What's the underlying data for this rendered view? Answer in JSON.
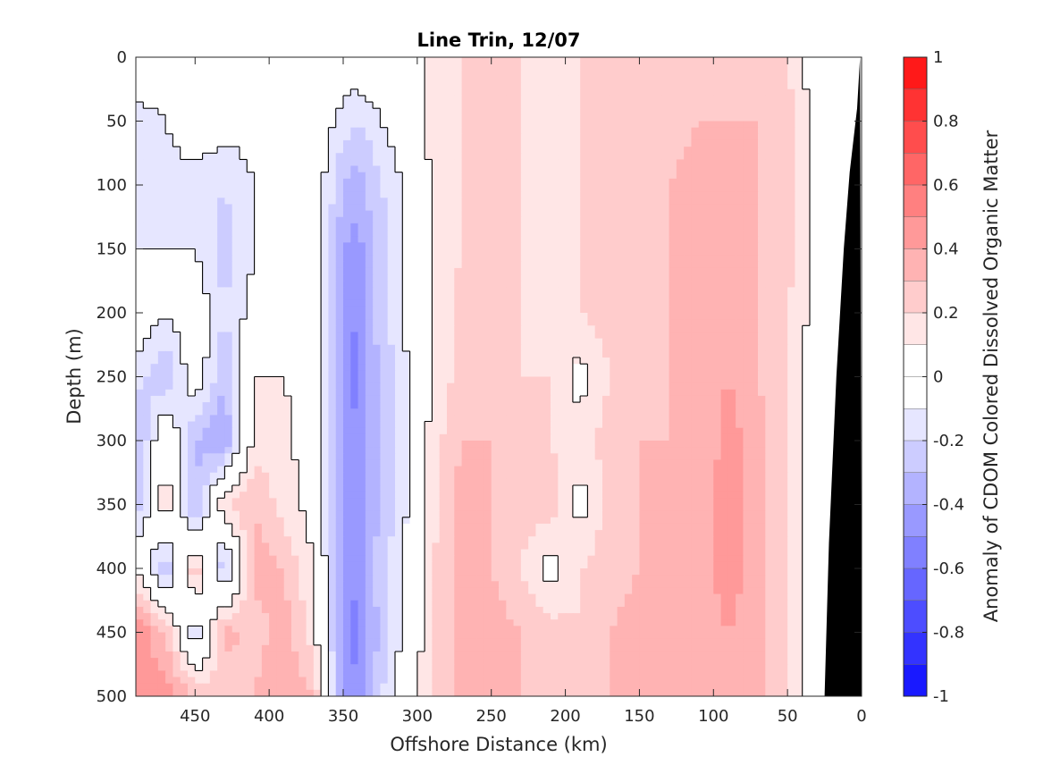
{
  "chart_data": {
    "type": "heatmap",
    "subtype": "filled contour section",
    "title": "Line Trin, 12/07",
    "xlabel": "Offshore Distance (km)",
    "ylabel": "Depth (m)",
    "colorbar_label": "Anomaly of CDOM Colored Dissolved Organic Matter",
    "xlim": [
      490,
      0
    ],
    "x_reversed": true,
    "ylim": [
      500,
      0
    ],
    "y_reversed": true,
    "x_ticks": [
      450,
      400,
      350,
      300,
      250,
      200,
      150,
      100,
      50,
      0
    ],
    "y_ticks": [
      0,
      50,
      100,
      150,
      200,
      250,
      300,
      350,
      400,
      450,
      500
    ],
    "colorbar_range": [
      -1,
      1
    ],
    "colorbar_ticks": [
      1,
      0.8,
      0.6,
      0.4,
      0.2,
      0,
      -0.2,
      -0.4,
      -0.6,
      -0.8,
      -1
    ],
    "contour_levels": 20,
    "zero_contour": "black line",
    "bottom_topography_color": "#000000",
    "colormap": "blue-white-red",
    "colors": {
      "negative": "#0000ff",
      "neutral": "#ffffff",
      "positive": "#ff0000"
    },
    "depths": [
      0,
      50,
      100,
      150,
      200,
      250,
      300,
      350,
      400,
      450,
      500
    ],
    "distances": [
      490,
      470,
      450,
      430,
      410,
      390,
      370,
      350,
      340,
      330,
      310,
      290,
      270,
      250,
      230,
      210,
      190,
      170,
      150,
      130,
      110,
      90,
      70,
      50,
      30,
      10
    ],
    "anomaly": [
      [
        0.0,
        0.0,
        0.0,
        0.0,
        0.0,
        0.0,
        0.05,
        0.0,
        0.0,
        0.05,
        0.0,
        0.15,
        0.2,
        0.2,
        0.2,
        0.1,
        0.2,
        0.2,
        0.2,
        0.2,
        0.2,
        0.2,
        0.2,
        0.2,
        0.0,
        0.0
      ],
      [
        -0.15,
        -0.1,
        0.0,
        -0.05,
        -0.05,
        0.0,
        0.0,
        -0.15,
        -0.2,
        -0.15,
        0.0,
        0.15,
        0.2,
        0.2,
        0.2,
        0.1,
        0.2,
        0.2,
        0.2,
        0.25,
        0.3,
        0.3,
        0.3,
        0.25,
        0.05,
        0.0
      ],
      [
        -0.15,
        -0.15,
        -0.15,
        -0.2,
        -0.1,
        0.0,
        0.0,
        -0.3,
        -0.35,
        -0.25,
        -0.1,
        0.1,
        0.2,
        0.25,
        0.2,
        0.1,
        0.2,
        0.25,
        0.25,
        0.3,
        0.35,
        0.35,
        0.3,
        0.25,
        0.05,
        0.0
      ],
      [
        -0.1,
        -0.1,
        -0.1,
        -0.25,
        -0.1,
        0.0,
        0.05,
        -0.4,
        -0.45,
        -0.3,
        -0.1,
        0.1,
        0.2,
        0.25,
        0.2,
        0.15,
        0.2,
        0.25,
        0.25,
        0.3,
        0.35,
        0.4,
        0.3,
        0.25,
        0.05,
        0.0
      ],
      [
        0.0,
        -0.1,
        0.0,
        -0.2,
        -0.05,
        0.1,
        0.1,
        -0.45,
        -0.5,
        -0.3,
        -0.1,
        0.1,
        0.25,
        0.25,
        0.2,
        0.15,
        0.2,
        0.25,
        0.25,
        0.3,
        0.35,
        0.4,
        0.3,
        0.2,
        0.05,
        0.0
      ],
      [
        -0.15,
        -0.3,
        0.0,
        -0.3,
        0.1,
        0.1,
        0.0,
        -0.45,
        -0.55,
        -0.35,
        -0.15,
        0.1,
        0.25,
        0.25,
        0.2,
        0.2,
        0.05,
        0.2,
        0.25,
        0.3,
        0.35,
        0.4,
        0.3,
        0.2,
        0.0,
        0.0
      ],
      [
        -0.35,
        0.05,
        -0.3,
        -0.4,
        0.15,
        0.15,
        0.0,
        -0.4,
        -0.5,
        -0.35,
        -0.15,
        0.15,
        0.3,
        0.3,
        0.25,
        0.2,
        0.15,
        0.25,
        0.3,
        0.3,
        0.3,
        0.45,
        0.35,
        0.2,
        0.0,
        0.0
      ],
      [
        -0.3,
        0.2,
        -0.35,
        0.2,
        0.3,
        0.15,
        0.05,
        -0.45,
        -0.5,
        -0.35,
        -0.15,
        0.15,
        0.35,
        0.3,
        0.25,
        0.25,
        0.05,
        0.25,
        0.3,
        0.3,
        0.35,
        0.45,
        0.35,
        0.2,
        0.0,
        0.0
      ],
      [
        0.1,
        -0.3,
        0.3,
        -0.3,
        0.35,
        0.3,
        0.1,
        -0.4,
        -0.5,
        -0.3,
        -0.1,
        0.2,
        0.35,
        0.3,
        0.2,
        0.05,
        0.2,
        0.25,
        0.3,
        0.3,
        0.35,
        0.45,
        0.35,
        0.2,
        0.0,
        0.0
      ],
      [
        0.5,
        0.3,
        -0.2,
        0.35,
        0.25,
        0.35,
        0.15,
        -0.45,
        -0.55,
        -0.35,
        -0.1,
        0.2,
        0.35,
        0.35,
        0.3,
        0.25,
        0.2,
        0.3,
        0.35,
        0.35,
        0.35,
        0.4,
        0.35,
        0.2,
        0.0,
        0.0
      ],
      [
        0.4,
        0.45,
        0.3,
        0.2,
        0.3,
        0.4,
        0.3,
        -0.4,
        -0.5,
        -0.3,
        0.0,
        0.2,
        0.35,
        0.35,
        0.3,
        0.25,
        0.25,
        0.3,
        0.35,
        0.35,
        0.4,
        0.4,
        0.35,
        0.2,
        0.0,
        0.0
      ]
    ]
  }
}
